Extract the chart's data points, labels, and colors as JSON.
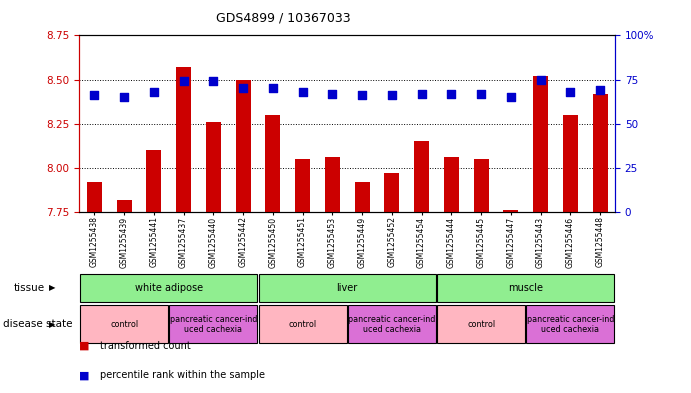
{
  "title": "GDS4899 / 10367033",
  "samples": [
    "GSM1255438",
    "GSM1255439",
    "GSM1255441",
    "GSM1255437",
    "GSM1255440",
    "GSM1255442",
    "GSM1255450",
    "GSM1255451",
    "GSM1255453",
    "GSM1255449",
    "GSM1255452",
    "GSM1255454",
    "GSM1255444",
    "GSM1255445",
    "GSM1255447",
    "GSM1255443",
    "GSM1255446",
    "GSM1255448"
  ],
  "transformed_count": [
    7.92,
    7.82,
    8.1,
    8.57,
    8.26,
    8.5,
    8.3,
    8.05,
    8.06,
    7.92,
    7.97,
    8.15,
    8.06,
    8.05,
    7.76,
    8.52,
    8.3,
    8.42
  ],
  "percentile_rank": [
    66,
    65,
    68,
    74,
    74,
    70,
    70,
    68,
    67,
    66,
    66,
    67,
    67,
    67,
    65,
    75,
    68,
    69
  ],
  "ylim_left": [
    7.75,
    8.75
  ],
  "ylim_right": [
    0,
    100
  ],
  "yticks_left": [
    7.75,
    8.0,
    8.25,
    8.5,
    8.75
  ],
  "yticks_right": [
    0,
    25,
    50,
    75,
    100
  ],
  "tissue_groups": [
    {
      "label": "white adipose",
      "start": 0,
      "end": 5,
      "color": "#90ee90"
    },
    {
      "label": "liver",
      "start": 6,
      "end": 11,
      "color": "#90ee90"
    },
    {
      "label": "muscle",
      "start": 12,
      "end": 17,
      "color": "#90ee90"
    }
  ],
  "disease_groups": [
    {
      "label": "control",
      "start": 0,
      "end": 2,
      "color": "#ffb6c1"
    },
    {
      "label": "pancreatic cancer-ind\nuced cachexia",
      "start": 3,
      "end": 5,
      "color": "#da70d6"
    },
    {
      "label": "control",
      "start": 6,
      "end": 8,
      "color": "#ffb6c1"
    },
    {
      "label": "pancreatic cancer-ind\nuced cachexia",
      "start": 9,
      "end": 11,
      "color": "#da70d6"
    },
    {
      "label": "control",
      "start": 12,
      "end": 14,
      "color": "#ffb6c1"
    },
    {
      "label": "pancreatic cancer-ind\nuced cachexia",
      "start": 15,
      "end": 17,
      "color": "#da70d6"
    }
  ],
  "bar_color": "#cc0000",
  "dot_color": "#0000cc",
  "bar_bottom": 7.75,
  "bar_width": 0.5,
  "dot_size": 28,
  "background_color": "#ffffff",
  "axis_color_left": "#cc0000",
  "axis_color_right": "#0000cc"
}
